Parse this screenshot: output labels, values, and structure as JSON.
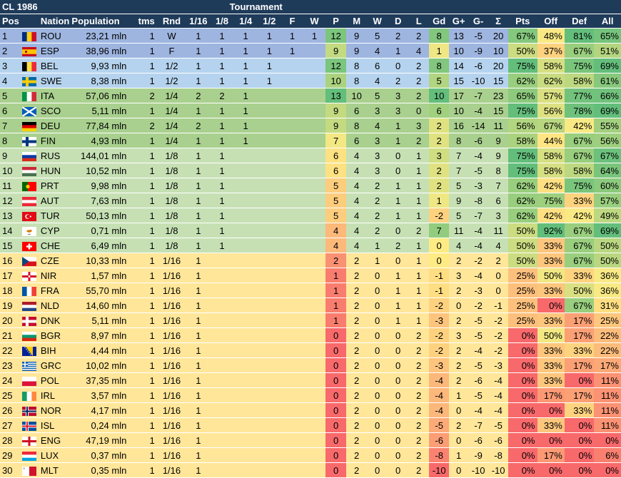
{
  "header": {
    "title": "CL 1986",
    "tournament": "Tournament",
    "columns": [
      "Pos",
      "Nation",
      "Population",
      "tms",
      "Rnd",
      "1/16",
      "1/8",
      "1/4",
      "1/2",
      "F",
      "W",
      "P",
      "M",
      "W",
      "D",
      "L",
      "Gd",
      "G+",
      "G-",
      "Σ",
      "Pts",
      "Off",
      "Def",
      "All"
    ]
  },
  "colors": {
    "header_bg": "#1f3b5a",
    "tier_blue": "#9eb5e0",
    "tier_lightblue": "#b5d3ee",
    "tier_green": "#a9d08e",
    "tier_lightgreen": "#c6e0b4",
    "tier_yellow": "#ffe699"
  },
  "chart_data": {
    "type": "table",
    "title": "CL 1986",
    "rows": [
      {
        "pos": 1,
        "flag": "rou",
        "nation": "ROU",
        "pop": "23,21 mln",
        "tms": 1,
        "rnd": "W",
        "r16": "1",
        "r8": "1",
        "r4": "1",
        "r2": "1",
        "f": "1",
        "w": "1",
        "p": 12,
        "m": 9,
        "win": 5,
        "d": 2,
        "l": 2,
        "gd": 8,
        "gp": 13,
        "gm": -5,
        "sum": 20,
        "pts": "67%",
        "off": "48%",
        "def": "81%",
        "all": "65%",
        "tier": "tier_blue"
      },
      {
        "pos": 2,
        "flag": "esp",
        "nation": "ESP",
        "pop": "38,96 mln",
        "tms": 1,
        "rnd": "F",
        "r16": "1",
        "r8": "1",
        "r4": "1",
        "r2": "1",
        "f": "1",
        "w": "",
        "p": 9,
        "m": 9,
        "win": 4,
        "d": 1,
        "l": 4,
        "gd": 1,
        "gp": 10,
        "gm": -9,
        "sum": 10,
        "pts": "50%",
        "off": "37%",
        "def": "67%",
        "all": "51%",
        "tier": "tier_blue"
      },
      {
        "pos": 3,
        "flag": "bel",
        "nation": "BEL",
        "pop": "9,93 mln",
        "tms": 1,
        "rnd": "1/2",
        "r16": "1",
        "r8": "1",
        "r4": "1",
        "r2": "1",
        "f": "",
        "w": "",
        "p": 12,
        "m": 8,
        "win": 6,
        "d": 0,
        "l": 2,
        "gd": 8,
        "gp": 14,
        "gm": -6,
        "sum": 20,
        "pts": "75%",
        "off": "58%",
        "def": "75%",
        "all": "69%",
        "tier": "tier_lightblue"
      },
      {
        "pos": 4,
        "flag": "swe",
        "nation": "SWE",
        "pop": "8,38 mln",
        "tms": 1,
        "rnd": "1/2",
        "r16": "1",
        "r8": "1",
        "r4": "1",
        "r2": "1",
        "f": "",
        "w": "",
        "p": 10,
        "m": 8,
        "win": 4,
        "d": 2,
        "l": 2,
        "gd": 5,
        "gp": 15,
        "gm": -10,
        "sum": 15,
        "pts": "62%",
        "off": "62%",
        "def": "58%",
        "all": "61%",
        "tier": "tier_lightblue"
      },
      {
        "pos": 5,
        "flag": "ita",
        "nation": "ITA",
        "pop": "57,06 mln",
        "tms": 2,
        "rnd": "1/4",
        "r16": "2",
        "r8": "2",
        "r4": "1",
        "r2": "",
        "f": "",
        "w": "",
        "p": 13,
        "m": 10,
        "win": 5,
        "d": 3,
        "l": 2,
        "gd": 10,
        "gp": 17,
        "gm": -7,
        "sum": 23,
        "pts": "65%",
        "off": "57%",
        "def": "77%",
        "all": "66%",
        "tier": "tier_green"
      },
      {
        "pos": 6,
        "flag": "sco",
        "nation": "SCO",
        "pop": "5,11 mln",
        "tms": 1,
        "rnd": "1/4",
        "r16": "1",
        "r8": "1",
        "r4": "1",
        "r2": "",
        "f": "",
        "w": "",
        "p": 9,
        "m": 6,
        "win": 3,
        "d": 3,
        "l": 0,
        "gd": 6,
        "gp": 10,
        "gm": -4,
        "sum": 15,
        "pts": "75%",
        "off": "56%",
        "def": "78%",
        "all": "69%",
        "tier": "tier_green"
      },
      {
        "pos": 7,
        "flag": "deu",
        "nation": "DEU",
        "pop": "77,84 mln",
        "tms": 2,
        "rnd": "1/4",
        "r16": "2",
        "r8": "1",
        "r4": "1",
        "r2": "",
        "f": "",
        "w": "",
        "p": 9,
        "m": 8,
        "win": 4,
        "d": 1,
        "l": 3,
        "gd": 2,
        "gp": 16,
        "gm": -14,
        "sum": 11,
        "pts": "56%",
        "off": "67%",
        "def": "42%",
        "all": "55%",
        "tier": "tier_green"
      },
      {
        "pos": 8,
        "flag": "fin",
        "nation": "FIN",
        "pop": "4,93 mln",
        "tms": 1,
        "rnd": "1/4",
        "r16": "1",
        "r8": "1",
        "r4": "1",
        "r2": "",
        "f": "",
        "w": "",
        "p": 7,
        "m": 6,
        "win": 3,
        "d": 1,
        "l": 2,
        "gd": 2,
        "gp": 8,
        "gm": -6,
        "sum": 9,
        "pts": "58%",
        "off": "44%",
        "def": "67%",
        "all": "56%",
        "tier": "tier_green"
      },
      {
        "pos": 9,
        "flag": "rus",
        "nation": "RUS",
        "pop": "144,01 mln",
        "tms": 1,
        "rnd": "1/8",
        "r16": "1",
        "r8": "1",
        "r4": "",
        "r2": "",
        "f": "",
        "w": "",
        "p": 6,
        "m": 4,
        "win": 3,
        "d": 0,
        "l": 1,
        "gd": 3,
        "gp": 7,
        "gm": -4,
        "sum": 9,
        "pts": "75%",
        "off": "58%",
        "def": "67%",
        "all": "67%",
        "tier": "tier_lightgreen"
      },
      {
        "pos": 10,
        "flag": "hun",
        "nation": "HUN",
        "pop": "10,52 mln",
        "tms": 1,
        "rnd": "1/8",
        "r16": "1",
        "r8": "1",
        "r4": "",
        "r2": "",
        "f": "",
        "w": "",
        "p": 6,
        "m": 4,
        "win": 3,
        "d": 0,
        "l": 1,
        "gd": 2,
        "gp": 7,
        "gm": -5,
        "sum": 8,
        "pts": "75%",
        "off": "58%",
        "def": "58%",
        "all": "64%",
        "tier": "tier_lightgreen"
      },
      {
        "pos": 11,
        "flag": "prt",
        "nation": "PRT",
        "pop": "9,98 mln",
        "tms": 1,
        "rnd": "1/8",
        "r16": "1",
        "r8": "1",
        "r4": "",
        "r2": "",
        "f": "",
        "w": "",
        "p": 5,
        "m": 4,
        "win": 2,
        "d": 1,
        "l": 1,
        "gd": 2,
        "gp": 5,
        "gm": -3,
        "sum": 7,
        "pts": "62%",
        "off": "42%",
        "def": "75%",
        "all": "60%",
        "tier": "tier_lightgreen"
      },
      {
        "pos": 12,
        "flag": "aut",
        "nation": "AUT",
        "pop": "7,63 mln",
        "tms": 1,
        "rnd": "1/8",
        "r16": "1",
        "r8": "1",
        "r4": "",
        "r2": "",
        "f": "",
        "w": "",
        "p": 5,
        "m": 4,
        "win": 2,
        "d": 1,
        "l": 1,
        "gd": 1,
        "gp": 9,
        "gm": -8,
        "sum": 6,
        "pts": "62%",
        "off": "75%",
        "def": "33%",
        "all": "57%",
        "tier": "tier_lightgreen"
      },
      {
        "pos": 13,
        "flag": "tur",
        "nation": "TUR",
        "pop": "50,13 mln",
        "tms": 1,
        "rnd": "1/8",
        "r16": "1",
        "r8": "1",
        "r4": "",
        "r2": "",
        "f": "",
        "w": "",
        "p": 5,
        "m": 4,
        "win": 2,
        "d": 1,
        "l": 1,
        "gd": -2,
        "gp": 5,
        "gm": -7,
        "sum": 3,
        "pts": "62%",
        "off": "42%",
        "def": "42%",
        "all": "49%",
        "tier": "tier_lightgreen"
      },
      {
        "pos": 14,
        "flag": "cyp",
        "nation": "CYP",
        "pop": "0,71 mln",
        "tms": 1,
        "rnd": "1/8",
        "r16": "1",
        "r8": "1",
        "r4": "",
        "r2": "",
        "f": "",
        "w": "",
        "p": 4,
        "m": 4,
        "win": 2,
        "d": 0,
        "l": 2,
        "gd": 7,
        "gp": 11,
        "gm": -4,
        "sum": 11,
        "pts": "50%",
        "off": "92%",
        "def": "67%",
        "all": "69%",
        "tier": "tier_lightgreen"
      },
      {
        "pos": 15,
        "flag": "che",
        "nation": "CHE",
        "pop": "6,49 mln",
        "tms": 1,
        "rnd": "1/8",
        "r16": "1",
        "r8": "1",
        "r4": "",
        "r2": "",
        "f": "",
        "w": "",
        "p": 4,
        "m": 4,
        "win": 1,
        "d": 2,
        "l": 1,
        "gd": 0,
        "gp": 4,
        "gm": -4,
        "sum": 4,
        "pts": "50%",
        "off": "33%",
        "def": "67%",
        "all": "50%",
        "tier": "tier_lightgreen"
      },
      {
        "pos": 16,
        "flag": "cze",
        "nation": "CZE",
        "pop": "10,33 mln",
        "tms": 1,
        "rnd": "1/16",
        "r16": "1",
        "r8": "",
        "r4": "",
        "r2": "",
        "f": "",
        "w": "",
        "p": 2,
        "m": 2,
        "win": 1,
        "d": 0,
        "l": 1,
        "gd": 0,
        "gp": 2,
        "gm": -2,
        "sum": 2,
        "pts": "50%",
        "off": "33%",
        "def": "67%",
        "all": "50%",
        "tier": "tier_yellow"
      },
      {
        "pos": 17,
        "flag": "nir",
        "nation": "NIR",
        "pop": "1,57 mln",
        "tms": 1,
        "rnd": "1/16",
        "r16": "1",
        "r8": "",
        "r4": "",
        "r2": "",
        "f": "",
        "w": "",
        "p": 1,
        "m": 2,
        "win": 0,
        "d": 1,
        "l": 1,
        "gd": -1,
        "gp": 3,
        "gm": -4,
        "sum": 0,
        "pts": "25%",
        "off": "50%",
        "def": "33%",
        "all": "36%",
        "tier": "tier_yellow"
      },
      {
        "pos": 18,
        "flag": "fra",
        "nation": "FRA",
        "pop": "55,70 mln",
        "tms": 1,
        "rnd": "1/16",
        "r16": "1",
        "r8": "",
        "r4": "",
        "r2": "",
        "f": "",
        "w": "",
        "p": 1,
        "m": 2,
        "win": 0,
        "d": 1,
        "l": 1,
        "gd": -1,
        "gp": 2,
        "gm": -3,
        "sum": 0,
        "pts": "25%",
        "off": "33%",
        "def": "50%",
        "all": "36%",
        "tier": "tier_yellow"
      },
      {
        "pos": 19,
        "flag": "nld",
        "nation": "NLD",
        "pop": "14,60 mln",
        "tms": 1,
        "rnd": "1/16",
        "r16": "1",
        "r8": "",
        "r4": "",
        "r2": "",
        "f": "",
        "w": "",
        "p": 1,
        "m": 2,
        "win": 0,
        "d": 1,
        "l": 1,
        "gd": -2,
        "gp": 0,
        "gm": -2,
        "sum": -1,
        "pts": "25%",
        "off": "0%",
        "def": "67%",
        "all": "31%",
        "tier": "tier_yellow"
      },
      {
        "pos": 20,
        "flag": "dnk",
        "nation": "DNK",
        "pop": "5,11 mln",
        "tms": 1,
        "rnd": "1/16",
        "r16": "1",
        "r8": "",
        "r4": "",
        "r2": "",
        "f": "",
        "w": "",
        "p": 1,
        "m": 2,
        "win": 0,
        "d": 1,
        "l": 1,
        "gd": -3,
        "gp": 2,
        "gm": -5,
        "sum": -2,
        "pts": "25%",
        "off": "33%",
        "def": "17%",
        "all": "25%",
        "tier": "tier_yellow"
      },
      {
        "pos": 21,
        "flag": "bgr",
        "nation": "BGR",
        "pop": "8,97 mln",
        "tms": 1,
        "rnd": "1/16",
        "r16": "1",
        "r8": "",
        "r4": "",
        "r2": "",
        "f": "",
        "w": "",
        "p": 0,
        "m": 2,
        "win": 0,
        "d": 0,
        "l": 2,
        "gd": -2,
        "gp": 3,
        "gm": -5,
        "sum": -2,
        "pts": "0%",
        "off": "50%",
        "def": "17%",
        "all": "22%",
        "tier": "tier_yellow"
      },
      {
        "pos": 22,
        "flag": "bih",
        "nation": "BIH",
        "pop": "4,44 mln",
        "tms": 1,
        "rnd": "1/16",
        "r16": "1",
        "r8": "",
        "r4": "",
        "r2": "",
        "f": "",
        "w": "",
        "p": 0,
        "m": 2,
        "win": 0,
        "d": 0,
        "l": 2,
        "gd": -2,
        "gp": 2,
        "gm": -4,
        "sum": -2,
        "pts": "0%",
        "off": "33%",
        "def": "33%",
        "all": "22%",
        "tier": "tier_yellow"
      },
      {
        "pos": 23,
        "flag": "grc",
        "nation": "GRC",
        "pop": "10,02 mln",
        "tms": 1,
        "rnd": "1/16",
        "r16": "1",
        "r8": "",
        "r4": "",
        "r2": "",
        "f": "",
        "w": "",
        "p": 0,
        "m": 2,
        "win": 0,
        "d": 0,
        "l": 2,
        "gd": -3,
        "gp": 2,
        "gm": -5,
        "sum": -3,
        "pts": "0%",
        "off": "33%",
        "def": "17%",
        "all": "17%",
        "tier": "tier_yellow"
      },
      {
        "pos": 24,
        "flag": "pol",
        "nation": "POL",
        "pop": "37,35 mln",
        "tms": 1,
        "rnd": "1/16",
        "r16": "1",
        "r8": "",
        "r4": "",
        "r2": "",
        "f": "",
        "w": "",
        "p": 0,
        "m": 2,
        "win": 0,
        "d": 0,
        "l": 2,
        "gd": -4,
        "gp": 2,
        "gm": -6,
        "sum": -4,
        "pts": "0%",
        "off": "33%",
        "def": "0%",
        "all": "11%",
        "tier": "tier_yellow"
      },
      {
        "pos": 25,
        "flag": "irl",
        "nation": "IRL",
        "pop": "3,57 mln",
        "tms": 1,
        "rnd": "1/16",
        "r16": "1",
        "r8": "",
        "r4": "",
        "r2": "",
        "f": "",
        "w": "",
        "p": 0,
        "m": 2,
        "win": 0,
        "d": 0,
        "l": 2,
        "gd": -4,
        "gp": 1,
        "gm": -5,
        "sum": -4,
        "pts": "0%",
        "off": "17%",
        "def": "17%",
        "all": "11%",
        "tier": "tier_yellow"
      },
      {
        "pos": 26,
        "flag": "nor",
        "nation": "NOR",
        "pop": "4,17 mln",
        "tms": 1,
        "rnd": "1/16",
        "r16": "1",
        "r8": "",
        "r4": "",
        "r2": "",
        "f": "",
        "w": "",
        "p": 0,
        "m": 2,
        "win": 0,
        "d": 0,
        "l": 2,
        "gd": -4,
        "gp": 0,
        "gm": -4,
        "sum": -4,
        "pts": "0%",
        "off": "0%",
        "def": "33%",
        "all": "11%",
        "tier": "tier_yellow"
      },
      {
        "pos": 27,
        "flag": "isl",
        "nation": "ISL",
        "pop": "0,24 mln",
        "tms": 1,
        "rnd": "1/16",
        "r16": "1",
        "r8": "",
        "r4": "",
        "r2": "",
        "f": "",
        "w": "",
        "p": 0,
        "m": 2,
        "win": 0,
        "d": 0,
        "l": 2,
        "gd": -5,
        "gp": 2,
        "gm": -7,
        "sum": -5,
        "pts": "0%",
        "off": "33%",
        "def": "0%",
        "all": "11%",
        "tier": "tier_yellow"
      },
      {
        "pos": 28,
        "flag": "eng",
        "nation": "ENG",
        "pop": "47,19 mln",
        "tms": 1,
        "rnd": "1/16",
        "r16": "1",
        "r8": "",
        "r4": "",
        "r2": "",
        "f": "",
        "w": "",
        "p": 0,
        "m": 2,
        "win": 0,
        "d": 0,
        "l": 2,
        "gd": -6,
        "gp": 0,
        "gm": -6,
        "sum": -6,
        "pts": "0%",
        "off": "0%",
        "def": "0%",
        "all": "0%",
        "tier": "tier_yellow"
      },
      {
        "pos": 29,
        "flag": "lux",
        "nation": "LUX",
        "pop": "0,37 mln",
        "tms": 1,
        "rnd": "1/16",
        "r16": "1",
        "r8": "",
        "r4": "",
        "r2": "",
        "f": "",
        "w": "",
        "p": 0,
        "m": 2,
        "win": 0,
        "d": 0,
        "l": 2,
        "gd": -8,
        "gp": 1,
        "gm": -9,
        "sum": -8,
        "pts": "0%",
        "off": "17%",
        "def": "0%",
        "all": "6%",
        "tier": "tier_yellow"
      },
      {
        "pos": 30,
        "flag": "mlt",
        "nation": "MLT",
        "pop": "0,35 mln",
        "tms": 1,
        "rnd": "1/16",
        "r16": "1",
        "r8": "",
        "r4": "",
        "r2": "",
        "f": "",
        "w": "",
        "p": 0,
        "m": 2,
        "win": 0,
        "d": 0,
        "l": 2,
        "gd": -10,
        "gp": 0,
        "gm": -10,
        "sum": -10,
        "pts": "0%",
        "off": "0%",
        "def": "0%",
        "all": "0%",
        "tier": "tier_yellow"
      }
    ]
  }
}
